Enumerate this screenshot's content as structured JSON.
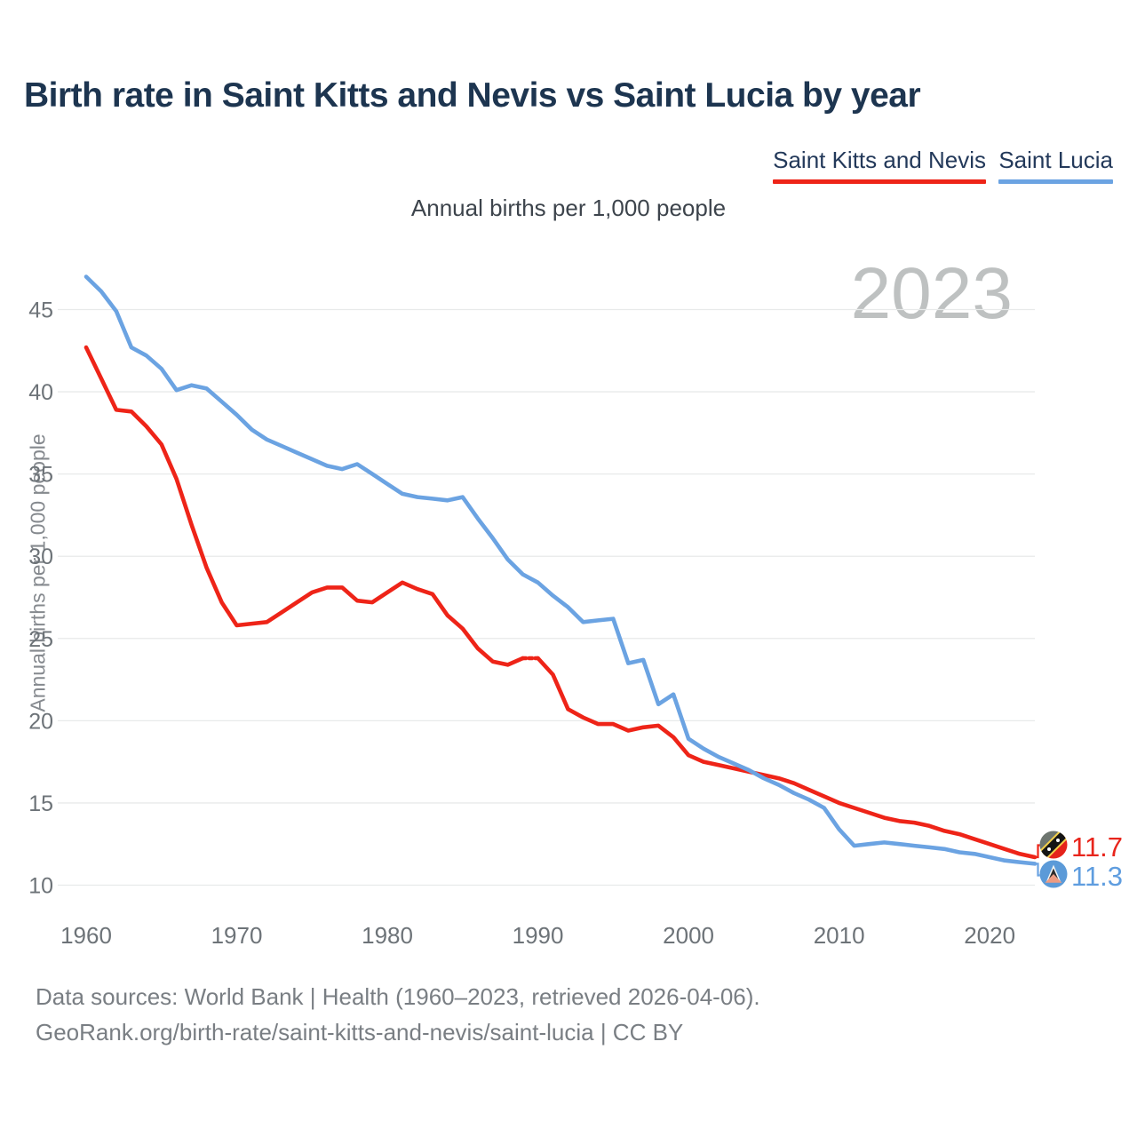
{
  "header": {
    "title": "Birth rate in Saint Kitts and Nevis vs Saint Lucia by year",
    "legend": [
      {
        "label": "Saint Kitts and Nevis",
        "color": "#ee2418"
      },
      {
        "label": "Saint Lucia",
        "color": "#6ba3e2"
      }
    ],
    "subtitle": "Annual births per 1,000 people"
  },
  "watermark": "2023",
  "yaxis_title": "Annual births per 1,000 people",
  "end_labels": [
    {
      "series": "Saint Kitts and Nevis",
      "value": "11.7",
      "color": "#e8251c",
      "flag": "saint-kitts-and-nevis-flag"
    },
    {
      "series": "Saint Lucia",
      "value": "11.3",
      "color": "#5f9ddf",
      "flag": "saint-lucia-flag"
    }
  ],
  "footer": {
    "line1": "Data sources: World Bank | Health (1960–2023, retrieved 2026-04-06).",
    "line2": "GeoRank.org/birth-rate/saint-kitts-and-nevis/saint-lucia | CC BY"
  },
  "chart_data": {
    "type": "line",
    "title": "Birth rate in Saint Kitts and Nevis vs Saint Lucia by year",
    "subtitle": "Annual births per 1,000 people",
    "xlabel": "",
    "ylabel": "Annual births per 1,000 people",
    "xlim": [
      1960,
      2023
    ],
    "ylim": [
      10,
      47
    ],
    "grid": "horizontal-only",
    "legend_position": "top-right",
    "yticks": [
      10,
      15,
      20,
      25,
      30,
      35,
      40,
      45
    ],
    "xticks": [
      1960,
      1970,
      1980,
      1990,
      2000,
      2010,
      2020
    ],
    "x": [
      1960,
      1961,
      1962,
      1963,
      1964,
      1965,
      1966,
      1967,
      1968,
      1969,
      1970,
      1971,
      1972,
      1973,
      1974,
      1975,
      1976,
      1977,
      1978,
      1979,
      1980,
      1981,
      1982,
      1983,
      1984,
      1985,
      1986,
      1987,
      1988,
      1989,
      1990,
      1991,
      1992,
      1993,
      1994,
      1995,
      1996,
      1997,
      1998,
      1999,
      2000,
      2001,
      2002,
      2003,
      2004,
      2005,
      2006,
      2007,
      2008,
      2009,
      2010,
      2011,
      2012,
      2013,
      2014,
      2015,
      2016,
      2017,
      2018,
      2019,
      2020,
      2021,
      2022,
      2023
    ],
    "series": [
      {
        "name": "Saint Kitts and Nevis",
        "color": "#ee2418",
        "dashed_segments": [
          [
            1989,
            1990
          ]
        ],
        "values": [
          42.7,
          40.8,
          38.9,
          38.8,
          37.9,
          36.8,
          34.7,
          31.9,
          29.3,
          27.2,
          25.8,
          25.9,
          26.0,
          26.6,
          27.2,
          27.8,
          28.1,
          28.1,
          27.3,
          27.2,
          27.8,
          28.4,
          28.0,
          27.7,
          26.4,
          25.6,
          24.4,
          23.6,
          23.4,
          23.8,
          23.8,
          22.8,
          20.7,
          20.2,
          19.8,
          19.8,
          19.4,
          19.6,
          19.7,
          19.0,
          17.9,
          17.5,
          17.3,
          17.1,
          16.9,
          16.7,
          16.5,
          16.2,
          15.8,
          15.4,
          15.0,
          14.7,
          14.4,
          14.1,
          13.9,
          13.8,
          13.6,
          13.3,
          13.1,
          12.8,
          12.5,
          12.2,
          11.9,
          11.7
        ]
      },
      {
        "name": "Saint Lucia",
        "color": "#6ba3e2",
        "dashed_segments": [],
        "values": [
          47.0,
          46.1,
          44.9,
          42.7,
          42.2,
          41.4,
          40.1,
          40.4,
          40.2,
          39.4,
          38.6,
          37.7,
          37.1,
          36.7,
          36.3,
          35.9,
          35.5,
          35.3,
          35.6,
          35.0,
          34.4,
          33.8,
          33.6,
          33.5,
          33.4,
          33.6,
          32.3,
          31.1,
          29.8,
          28.9,
          28.4,
          27.6,
          26.9,
          26.0,
          26.1,
          26.2,
          23.5,
          23.7,
          21.0,
          21.6,
          18.9,
          18.3,
          17.8,
          17.4,
          17.0,
          16.5,
          16.1,
          15.6,
          15.2,
          14.7,
          13.4,
          12.4,
          12.5,
          12.6,
          12.5,
          12.4,
          12.3,
          12.2,
          12.0,
          11.9,
          11.7,
          11.5,
          11.4,
          11.3
        ]
      }
    ]
  }
}
